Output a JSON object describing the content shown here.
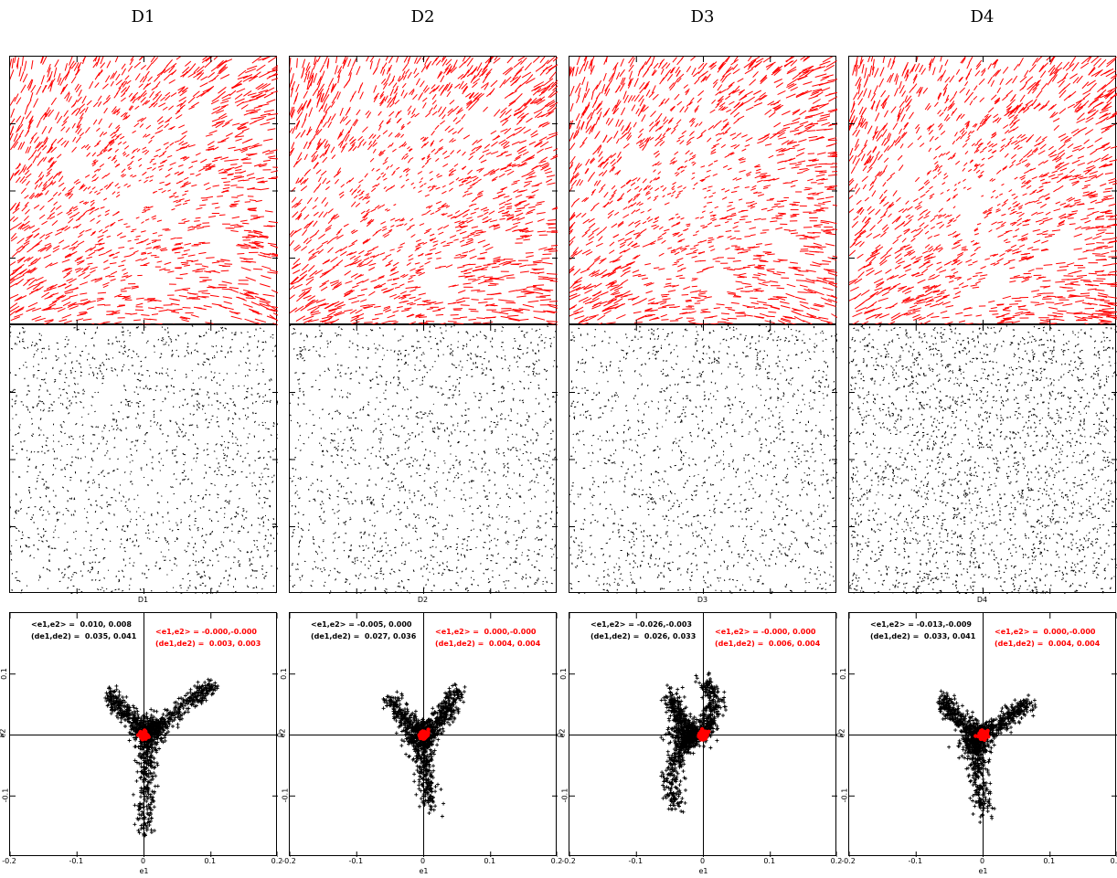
{
  "columns": [
    {
      "title": "D1",
      "map_label": "D1",
      "stats_black": {
        "mean": "<e1,e2> =  0.010, 0.008",
        "disp": "(de1,de2) =  0.035, 0.041"
      },
      "stats_red": {
        "mean": "<e1,e2> = -0.000,-0.000",
        "disp": "(de1,de2) =  0.003, 0.003"
      }
    },
    {
      "title": "D2",
      "map_label": "D2",
      "stats_black": {
        "mean": "<e1,e2> = -0.005, 0.000",
        "disp": "(de1,de2) =  0.027, 0.036"
      },
      "stats_red": {
        "mean": "<e1,e2> =  0.000,-0.000",
        "disp": "(de1,de2) =  0.004, 0.004"
      }
    },
    {
      "title": "D3",
      "map_label": "D3",
      "stats_black": {
        "mean": "<e1,e2> = -0.026,-0.003",
        "disp": "(de1,de2) =  0.026, 0.033"
      },
      "stats_red": {
        "mean": "<e1,e2> = -0.000, 0.000",
        "disp": "(de1,de2) =  0.006, 0.004"
      }
    },
    {
      "title": "D4",
      "map_label": "D4",
      "stats_black": {
        "mean": "<e1,e2> = -0.013,-0.009",
        "disp": "(de1,de2) =  0.033, 0.041"
      },
      "stats_red": {
        "mean": "<e1,e2> =  0.000,-0.000",
        "disp": "(de1,de2) =  0.004, 0.004"
      }
    }
  ],
  "chart_data": [
    {
      "type": "scatter",
      "panel": "D1",
      "xlabel": "e1",
      "ylabel": "e2",
      "xlim": [
        -0.2,
        0.2
      ],
      "ylim": [
        -0.2,
        0.2
      ],
      "xticks": [
        "-0.2",
        "-0.1",
        "0",
        "0.1",
        "0.2"
      ],
      "yticks": [
        "-0.1",
        "0",
        "0.1"
      ],
      "series": [
        {
          "color": "#000000",
          "marker": "plus",
          "mean": [
            0.01,
            0.008
          ],
          "dispersion": [
            0.035,
            0.041
          ],
          "arms": [
            [
              [
                0.005,
                0.0
              ],
              [
                -0.02,
                0.03
              ],
              [
                -0.04,
                0.05
              ],
              [
                -0.05,
                0.07
              ]
            ],
            [
              [
                0.01,
                0.005
              ],
              [
                0.04,
                0.03
              ],
              [
                0.065,
                0.055
              ],
              [
                0.09,
                0.07
              ],
              [
                0.1,
                0.08
              ]
            ],
            [
              [
                0.005,
                0.0
              ],
              [
                0.005,
                -0.05
              ],
              [
                0.003,
                -0.1
              ],
              [
                0.0,
                -0.17
              ]
            ]
          ]
        },
        {
          "color": "#ff0000",
          "marker": "dot",
          "mean": [
            0.0,
            0.0
          ],
          "dispersion": [
            0.003,
            0.003
          ]
        }
      ]
    },
    {
      "type": "scatter",
      "panel": "D2",
      "xlabel": "e1",
      "ylabel": "e2",
      "xlim": [
        -0.2,
        0.2
      ],
      "ylim": [
        -0.2,
        0.2
      ],
      "xticks": [
        "-0.2",
        "-0.1",
        "0",
        "0.1",
        "0.2"
      ],
      "yticks": [
        "-0.1",
        "0",
        "0.1"
      ],
      "series": [
        {
          "color": "#000000",
          "marker": "plus",
          "mean": [
            -0.005,
            0.0
          ],
          "dispersion": [
            0.027,
            0.036
          ],
          "arms": [
            [
              [
                0.0,
                0.0
              ],
              [
                -0.02,
                0.02
              ],
              [
                -0.04,
                0.04
              ],
              [
                -0.05,
                0.06
              ]
            ],
            [
              [
                0.005,
                0.005
              ],
              [
                0.03,
                0.03
              ],
              [
                0.04,
                0.05
              ],
              [
                0.05,
                0.08
              ]
            ],
            [
              [
                0.0,
                0.0
              ],
              [
                0.0,
                -0.04
              ],
              [
                0.005,
                -0.08
              ],
              [
                0.01,
                -0.12
              ]
            ]
          ]
        },
        {
          "color": "#ff0000",
          "marker": "dot",
          "mean": [
            0.0,
            0.0
          ],
          "dispersion": [
            0.004,
            0.004
          ]
        }
      ]
    },
    {
      "type": "scatter",
      "panel": "D3",
      "xlabel": "e1",
      "ylabel": "e2",
      "xlim": [
        -0.2,
        0.2
      ],
      "ylim": [
        -0.2,
        0.2
      ],
      "xticks": [
        "-0.2",
        "-0.1",
        "0",
        "0.1",
        "0.2"
      ],
      "yticks": [
        "-0.1",
        "0",
        "0.1"
      ],
      "series": [
        {
          "color": "#000000",
          "marker": "plus",
          "mean": [
            -0.026,
            -0.003
          ],
          "dispersion": [
            0.026,
            0.033
          ],
          "arms": [
            [
              [
                -0.01,
                0.0
              ],
              [
                -0.03,
                0.02
              ],
              [
                -0.04,
                0.04
              ],
              [
                -0.05,
                0.07
              ]
            ],
            [
              [
                0.0,
                0.0
              ],
              [
                0.01,
                0.03
              ],
              [
                0.02,
                0.06
              ],
              [
                0.0,
                0.09
              ]
            ],
            [
              [
                -0.02,
                0.0
              ],
              [
                -0.04,
                -0.04
              ],
              [
                -0.05,
                -0.08
              ],
              [
                -0.04,
                -0.12
              ]
            ]
          ]
        },
        {
          "color": "#ff0000",
          "marker": "dot",
          "mean": [
            0.0,
            0.0
          ],
          "dispersion": [
            0.006,
            0.004
          ]
        }
      ]
    },
    {
      "type": "scatter",
      "panel": "D4",
      "xlabel": "e1",
      "ylabel": "e2",
      "xlim": [
        -0.2,
        0.2
      ],
      "ylim": [
        -0.2,
        0.2
      ],
      "xticks": [
        "-0.2",
        "-0.1",
        "0",
        "0.1",
        "0.2"
      ],
      "yticks": [
        "-0.1",
        "0",
        "0.1"
      ],
      "series": [
        {
          "color": "#000000",
          "marker": "plus",
          "mean": [
            -0.013,
            -0.009
          ],
          "dispersion": [
            0.033,
            0.041
          ],
          "arms": [
            [
              [
                -0.005,
                0.0
              ],
              [
                -0.03,
                0.02
              ],
              [
                -0.05,
                0.04
              ],
              [
                -0.06,
                0.06
              ]
            ],
            [
              [
                0.0,
                0.005
              ],
              [
                0.03,
                0.02
              ],
              [
                0.05,
                0.04
              ],
              [
                0.07,
                0.05
              ]
            ],
            [
              [
                -0.005,
                0.0
              ],
              [
                -0.01,
                -0.04
              ],
              [
                -0.005,
                -0.08
              ],
              [
                0.0,
                -0.13
              ]
            ]
          ]
        },
        {
          "color": "#ff0000",
          "marker": "dot",
          "mean": [
            0.0,
            0.0
          ],
          "dispersion": [
            0.004,
            0.004
          ]
        }
      ]
    }
  ]
}
